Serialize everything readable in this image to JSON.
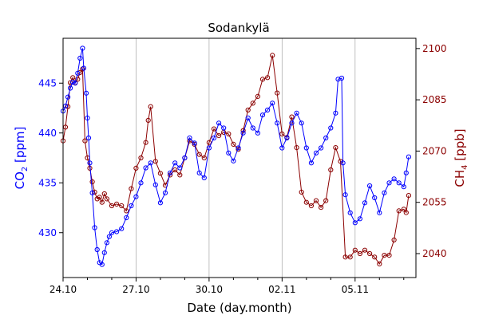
{
  "chart_data": {
    "type": "line",
    "title": "Sodankylä",
    "xlabel": "Date (day.month)",
    "x_ticks": [
      "24.10",
      "27.10",
      "30.10",
      "02.11",
      "05.11"
    ],
    "x_tick_days": [
      0,
      3,
      6,
      9,
      12
    ],
    "xlim": [
      0,
      14.5
    ],
    "grid": "vertical",
    "colors": {
      "co2": "#0000ff",
      "ch4": "#8b0000"
    },
    "left_axis": {
      "label_main": "CO",
      "label_sub": "2",
      "label_unit": " [ppm]",
      "ylim": [
        425.5,
        449.5
      ],
      "ticks": [
        430,
        435,
        440,
        445
      ]
    },
    "right_axis": {
      "label_main": "CH",
      "label_sub": "4",
      "label_unit": " [ppb]",
      "ylim": [
        2033,
        2103
      ],
      "ticks": [
        2040,
        2055,
        2070,
        2085,
        2100
      ]
    },
    "series": [
      {
        "axis": "left",
        "points": [
          [
            0.0,
            442.2
          ],
          [
            0.1,
            442.7
          ],
          [
            0.2,
            443.6
          ],
          [
            0.3,
            444.5
          ],
          [
            0.4,
            445.1
          ],
          [
            0.5,
            445.0
          ],
          [
            0.6,
            446.0
          ],
          [
            0.7,
            447.5
          ],
          [
            0.8,
            448.5
          ],
          [
            0.85,
            446.5
          ],
          [
            0.95,
            444.0
          ],
          [
            1.0,
            441.5
          ],
          [
            1.05,
            439.5
          ],
          [
            1.1,
            437.0
          ],
          [
            1.2,
            434.0
          ],
          [
            1.3,
            430.5
          ],
          [
            1.4,
            428.3
          ],
          [
            1.5,
            427.0
          ],
          [
            1.6,
            426.8
          ],
          [
            1.7,
            428.0
          ],
          [
            1.8,
            429.0
          ],
          [
            1.9,
            429.6
          ],
          [
            2.0,
            430.0
          ],
          [
            2.2,
            430.1
          ],
          [
            2.4,
            430.4
          ],
          [
            2.6,
            431.5
          ],
          [
            2.8,
            432.7
          ],
          [
            3.0,
            433.6
          ],
          [
            3.2,
            435.0
          ],
          [
            3.4,
            436.5
          ],
          [
            3.6,
            437.0
          ],
          [
            3.8,
            434.8
          ],
          [
            4.0,
            433.0
          ],
          [
            4.2,
            434.0
          ],
          [
            4.4,
            436.0
          ],
          [
            4.6,
            437.0
          ],
          [
            4.8,
            436.5
          ],
          [
            5.0,
            437.5
          ],
          [
            5.2,
            439.5
          ],
          [
            5.4,
            439.0
          ],
          [
            5.6,
            436.0
          ],
          [
            5.8,
            435.5
          ],
          [
            6.0,
            438.5
          ],
          [
            6.2,
            439.5
          ],
          [
            6.4,
            441.0
          ],
          [
            6.6,
            440.5
          ],
          [
            6.8,
            438.0
          ],
          [
            7.0,
            437.2
          ],
          [
            7.2,
            438.5
          ],
          [
            7.4,
            440.0
          ],
          [
            7.6,
            441.5
          ],
          [
            7.8,
            440.5
          ],
          [
            8.0,
            440.0
          ],
          [
            8.2,
            441.8
          ],
          [
            8.4,
            442.3
          ],
          [
            8.6,
            443.0
          ],
          [
            8.8,
            441.0
          ],
          [
            9.0,
            438.5
          ],
          [
            9.2,
            439.5
          ],
          [
            9.4,
            441.0
          ],
          [
            9.6,
            442.0
          ],
          [
            9.8,
            441.0
          ],
          [
            10.0,
            438.5
          ],
          [
            10.2,
            437.0
          ],
          [
            10.4,
            438.0
          ],
          [
            10.6,
            438.5
          ],
          [
            10.8,
            439.5
          ],
          [
            11.0,
            440.5
          ],
          [
            11.2,
            442.0
          ],
          [
            11.3,
            445.4
          ],
          [
            11.45,
            445.5
          ],
          [
            11.5,
            437.0
          ],
          [
            11.6,
            433.8
          ],
          [
            11.8,
            432.0
          ],
          [
            12.0,
            431.0
          ],
          [
            12.2,
            431.4
          ],
          [
            12.4,
            433.0
          ],
          [
            12.6,
            434.7
          ],
          [
            12.8,
            433.5
          ],
          [
            13.0,
            432.0
          ],
          [
            13.2,
            434.0
          ],
          [
            13.4,
            435.0
          ],
          [
            13.6,
            435.4
          ],
          [
            13.8,
            435.0
          ],
          [
            14.0,
            434.6
          ],
          [
            14.1,
            436.0
          ],
          [
            14.2,
            437.6
          ]
        ]
      },
      {
        "axis": "right",
        "points": [
          [
            0.0,
            2073
          ],
          [
            0.1,
            2077
          ],
          [
            0.2,
            2083
          ],
          [
            0.3,
            2090
          ],
          [
            0.4,
            2091.5
          ],
          [
            0.5,
            2090
          ],
          [
            0.6,
            2091
          ],
          [
            0.7,
            2093
          ],
          [
            0.8,
            2094
          ],
          [
            0.9,
            2073
          ],
          [
            1.0,
            2068
          ],
          [
            1.1,
            2065
          ],
          [
            1.2,
            2061
          ],
          [
            1.3,
            2058
          ],
          [
            1.4,
            2056
          ],
          [
            1.5,
            2056.5
          ],
          [
            1.6,
            2055
          ],
          [
            1.7,
            2057.5
          ],
          [
            1.8,
            2056
          ],
          [
            2.0,
            2054
          ],
          [
            2.2,
            2054.5
          ],
          [
            2.4,
            2054
          ],
          [
            2.6,
            2052.5
          ],
          [
            2.8,
            2059
          ],
          [
            3.0,
            2065
          ],
          [
            3.2,
            2068
          ],
          [
            3.4,
            2072.5
          ],
          [
            3.5,
            2079
          ],
          [
            3.6,
            2083
          ],
          [
            3.8,
            2067
          ],
          [
            4.0,
            2063.5
          ],
          [
            4.2,
            2060
          ],
          [
            4.4,
            2063
          ],
          [
            4.6,
            2064.5
          ],
          [
            4.8,
            2063
          ],
          [
            5.0,
            2068
          ],
          [
            5.2,
            2073
          ],
          [
            5.4,
            2072
          ],
          [
            5.6,
            2069
          ],
          [
            5.8,
            2068
          ],
          [
            6.0,
            2072.5
          ],
          [
            6.2,
            2076.5
          ],
          [
            6.4,
            2074.5
          ],
          [
            6.6,
            2075.5
          ],
          [
            6.8,
            2075
          ],
          [
            7.0,
            2072
          ],
          [
            7.2,
            2070.5
          ],
          [
            7.4,
            2076
          ],
          [
            7.6,
            2082
          ],
          [
            7.8,
            2084
          ],
          [
            8.0,
            2086
          ],
          [
            8.2,
            2091
          ],
          [
            8.4,
            2091.5
          ],
          [
            8.6,
            2098
          ],
          [
            8.8,
            2087
          ],
          [
            9.0,
            2075
          ],
          [
            9.2,
            2074
          ],
          [
            9.4,
            2080
          ],
          [
            9.6,
            2071
          ],
          [
            9.8,
            2058
          ],
          [
            10.0,
            2055
          ],
          [
            10.2,
            2054
          ],
          [
            10.4,
            2055.5
          ],
          [
            10.6,
            2053.5
          ],
          [
            10.8,
            2055.5
          ],
          [
            11.0,
            2064.5
          ],
          [
            11.2,
            2071
          ],
          [
            11.4,
            2067
          ],
          [
            11.6,
            2039
          ],
          [
            11.8,
            2039
          ],
          [
            12.0,
            2041
          ],
          [
            12.2,
            2040
          ],
          [
            12.4,
            2041
          ],
          [
            12.6,
            2040
          ],
          [
            12.8,
            2039
          ],
          [
            13.0,
            2037
          ],
          [
            13.2,
            2039.5
          ],
          [
            13.4,
            2039.5
          ],
          [
            13.6,
            2044
          ],
          [
            13.8,
            2052.5
          ],
          [
            14.0,
            2053
          ],
          [
            14.1,
            2052
          ],
          [
            14.2,
            2057
          ]
        ]
      }
    ]
  }
}
